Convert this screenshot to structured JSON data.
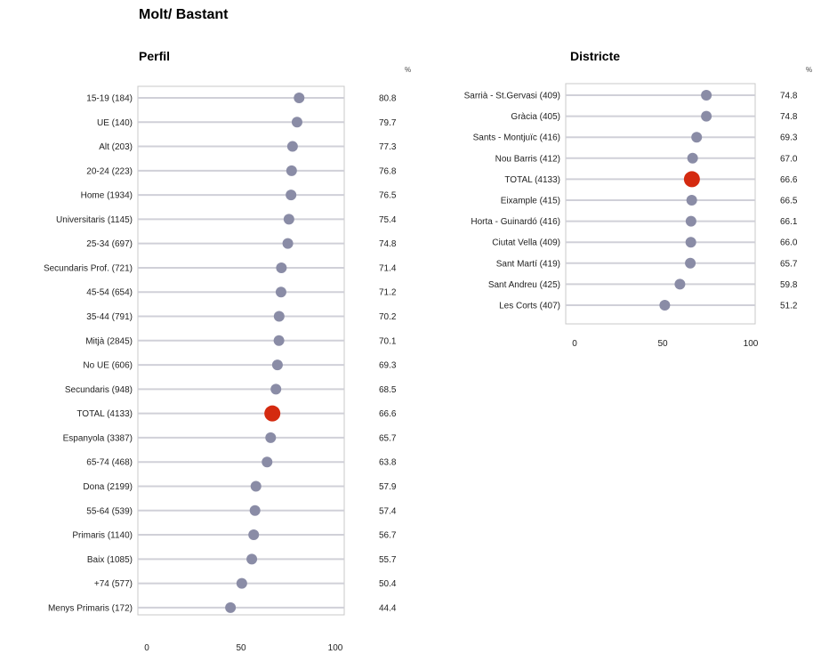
{
  "page": {
    "title": "Molt/ Bastant"
  },
  "chart_data": [
    {
      "type": "dot",
      "title": "Perfil",
      "unit": "%",
      "xlim": [
        0,
        100
      ],
      "xticks": [
        0,
        50,
        100
      ],
      "highlight_label": "TOTAL (4133)",
      "colors": {
        "dot": "#8a8ca6",
        "highlight": "#d42a10",
        "line": "#d0d0d8"
      },
      "categories": [
        "15-19 (184)",
        "UE (140)",
        "Alt (203)",
        "20-24 (223)",
        "Home (1934)",
        "Universitaris (1145)",
        "25-34 (697)",
        "Secundaris Prof. (721)",
        "45-54 (654)",
        "35-44 (791)",
        "Mitjà (2845)",
        "No UE (606)",
        "Secundaris (948)",
        "TOTAL (4133)",
        "Espanyola (3387)",
        "65-74 (468)",
        "Dona (2199)",
        "55-64 (539)",
        "Primaris (1140)",
        "Baix (1085)",
        "+74 (577)",
        "Menys Primaris (172)"
      ],
      "values": [
        80.8,
        79.7,
        77.3,
        76.8,
        76.5,
        75.4,
        74.8,
        71.4,
        71.2,
        70.2,
        70.1,
        69.3,
        68.5,
        66.6,
        65.7,
        63.8,
        57.9,
        57.4,
        56.7,
        55.7,
        50.4,
        44.4
      ],
      "value_labels": [
        "80.8",
        "79.7",
        "77.3",
        "76.8",
        "76.5",
        "75.4",
        "74.8",
        "71.4",
        "71.2",
        "70.2",
        "70.1",
        "69.3",
        "68.5",
        "66.6",
        "65.7",
        "63.8",
        "57.9",
        "57.4",
        "56.7",
        "55.7",
        "50.4",
        "44.4"
      ]
    },
    {
      "type": "dot",
      "title": "Districte",
      "unit": "%",
      "xlim": [
        0,
        100
      ],
      "xticks": [
        0,
        50,
        100
      ],
      "highlight_label": "TOTAL (4133)",
      "colors": {
        "dot": "#8a8ca6",
        "highlight": "#d42a10",
        "line": "#d0d0d8"
      },
      "categories": [
        "Sarrià - St.Gervasi (409)",
        "Gràcia (405)",
        "Sants - Montjuïc (416)",
        "Nou Barris (412)",
        "TOTAL (4133)",
        "Eixample (415)",
        "Horta - Guinardó (416)",
        "Ciutat Vella (409)",
        "Sant Martí (419)",
        "Sant Andreu (425)",
        "Les Corts (407)"
      ],
      "values": [
        74.8,
        74.8,
        69.3,
        67.0,
        66.6,
        66.5,
        66.1,
        66.0,
        65.7,
        59.8,
        51.2
      ],
      "value_labels": [
        "74.8",
        "74.8",
        "69.3",
        "67.0",
        "66.6",
        "66.5",
        "66.1",
        "66.0",
        "65.7",
        "59.8",
        "51.2"
      ]
    }
  ]
}
